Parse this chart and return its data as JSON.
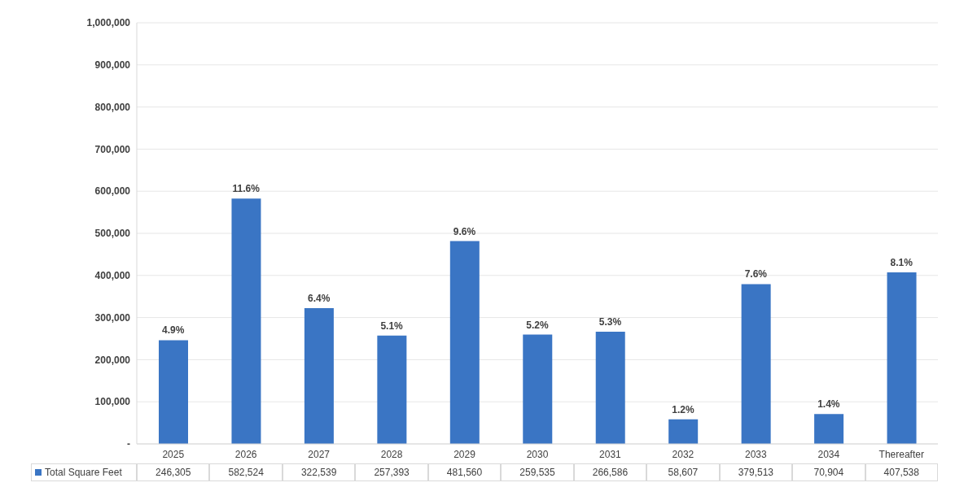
{
  "chart_data": {
    "type": "bar",
    "categories": [
      "2025",
      "2026",
      "2027",
      "2028",
      "2029",
      "2030",
      "2031",
      "2032",
      "2033",
      "2034",
      "Thereafter"
    ],
    "series": [
      {
        "name": "Total Square Feet",
        "color": "#3a75c4",
        "values": [
          246305,
          582524,
          322539,
          257393,
          481560,
          259535,
          266586,
          58607,
          379513,
          70904,
          407538
        ],
        "value_labels": [
          "246,305",
          "582,524",
          "322,539",
          "257,393",
          "481,560",
          "259,535",
          "266,586",
          "58,607",
          "379,513",
          "70,904",
          "407,538"
        ]
      }
    ],
    "annotations": [
      {
        "text": "4.9%",
        "x": "2025",
        "y": 246305
      },
      {
        "text": "11.6%",
        "x": "2026",
        "y": 582524
      },
      {
        "text": "6.4%",
        "x": "2027",
        "y": 322539
      },
      {
        "text": "5.1%",
        "x": "2028",
        "y": 257393
      },
      {
        "text": "9.6%",
        "x": "2029",
        "y": 481560
      },
      {
        "text": "5.2%",
        "x": "2030",
        "y": 259535
      },
      {
        "text": "5.3%",
        "x": "2031",
        "y": 266586
      },
      {
        "text": "1.2%",
        "x": "2032",
        "y": 58607
      },
      {
        "text": "7.6%",
        "x": "2033",
        "y": 379513
      },
      {
        "text": "1.4%",
        "x": "2034",
        "y": 70904
      },
      {
        "text": "8.1%",
        "x": "Thereafter",
        "y": 407538
      }
    ],
    "ylim": [
      0,
      1000000
    ],
    "yticks": [
      {
        "value": 0,
        "label": "-"
      },
      {
        "value": 100000,
        "label": "100,000"
      },
      {
        "value": 200000,
        "label": "200,000"
      },
      {
        "value": 300000,
        "label": "300,000"
      },
      {
        "value": 400000,
        "label": "400,000"
      },
      {
        "value": 500000,
        "label": "500,000"
      },
      {
        "value": 600000,
        "label": "600,000"
      },
      {
        "value": 700000,
        "label": "700,000"
      },
      {
        "value": 800000,
        "label": "800,000"
      },
      {
        "value": 900000,
        "label": "900,000"
      },
      {
        "value": 1000000,
        "label": "1,000,000"
      }
    ],
    "grid": "y",
    "legend": "bottom"
  }
}
